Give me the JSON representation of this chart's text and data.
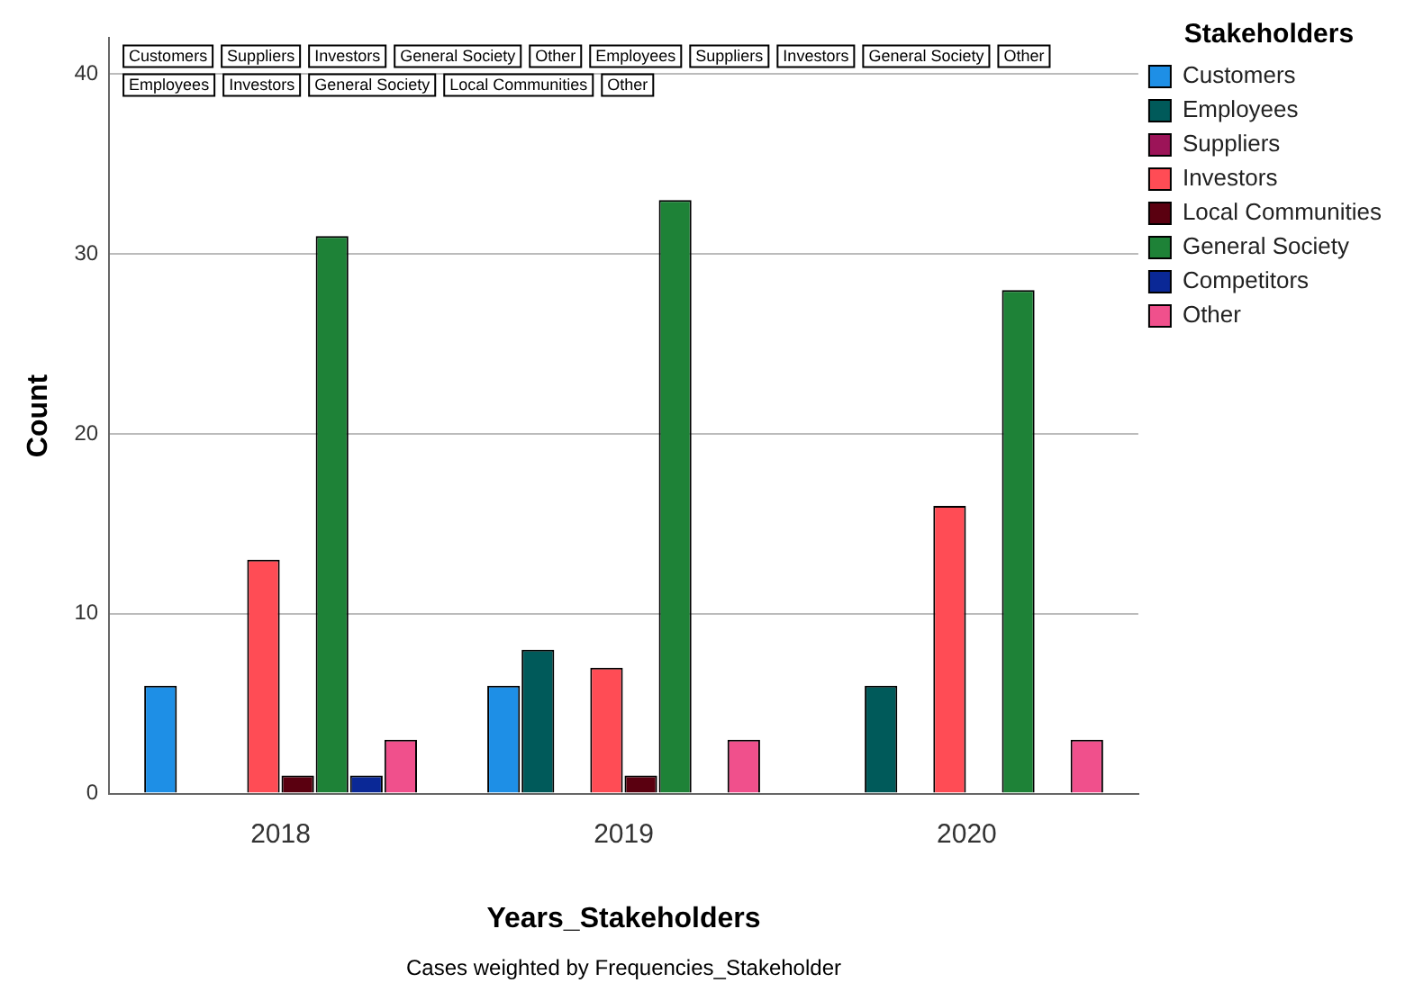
{
  "chart_data": {
    "type": "bar",
    "xlabel": "Years_Stakeholders",
    "ylabel": "Count",
    "legend_title": "Stakeholders",
    "legend": "top right",
    "grid": "y",
    "categories": [
      "2018",
      "2019",
      "2020"
    ],
    "ylim": [
      0,
      42
    ],
    "yticks": [
      0,
      10,
      20,
      30,
      40
    ],
    "series": [
      {
        "name": "Customers",
        "color": "#1e8fe6",
        "values": [
          6,
          6,
          null
        ]
      },
      {
        "name": "Employees",
        "color": "#005a5a",
        "values": [
          null,
          8,
          6
        ]
      },
      {
        "name": "Suppliers",
        "color": "#9c1458",
        "values": [
          null,
          null,
          null
        ]
      },
      {
        "name": "Investors",
        "color": "#ff4c55",
        "values": [
          13,
          7,
          16
        ]
      },
      {
        "name": "Local Communities",
        "color": "#5a0010",
        "values": [
          1,
          1,
          null
        ]
      },
      {
        "name": "General Society",
        "color": "#1e8237",
        "values": [
          31,
          33,
          28
        ]
      },
      {
        "name": "Competitors",
        "color": "#0a2896",
        "values": [
          1,
          0,
          0
        ]
      },
      {
        "name": "Other",
        "color": "#f0508c",
        "values": [
          3,
          3,
          3
        ]
      }
    ],
    "annotations": [
      "Customers",
      "Suppliers",
      "Investors",
      "General Society",
      "Other",
      "Employees",
      "Suppliers",
      "Investors",
      "General Society",
      "Other",
      "Employees",
      "Investors",
      "General Society",
      "Local Communities",
      "Other",
      "Cases weighted by Frequencies_Stakeholder"
    ]
  }
}
